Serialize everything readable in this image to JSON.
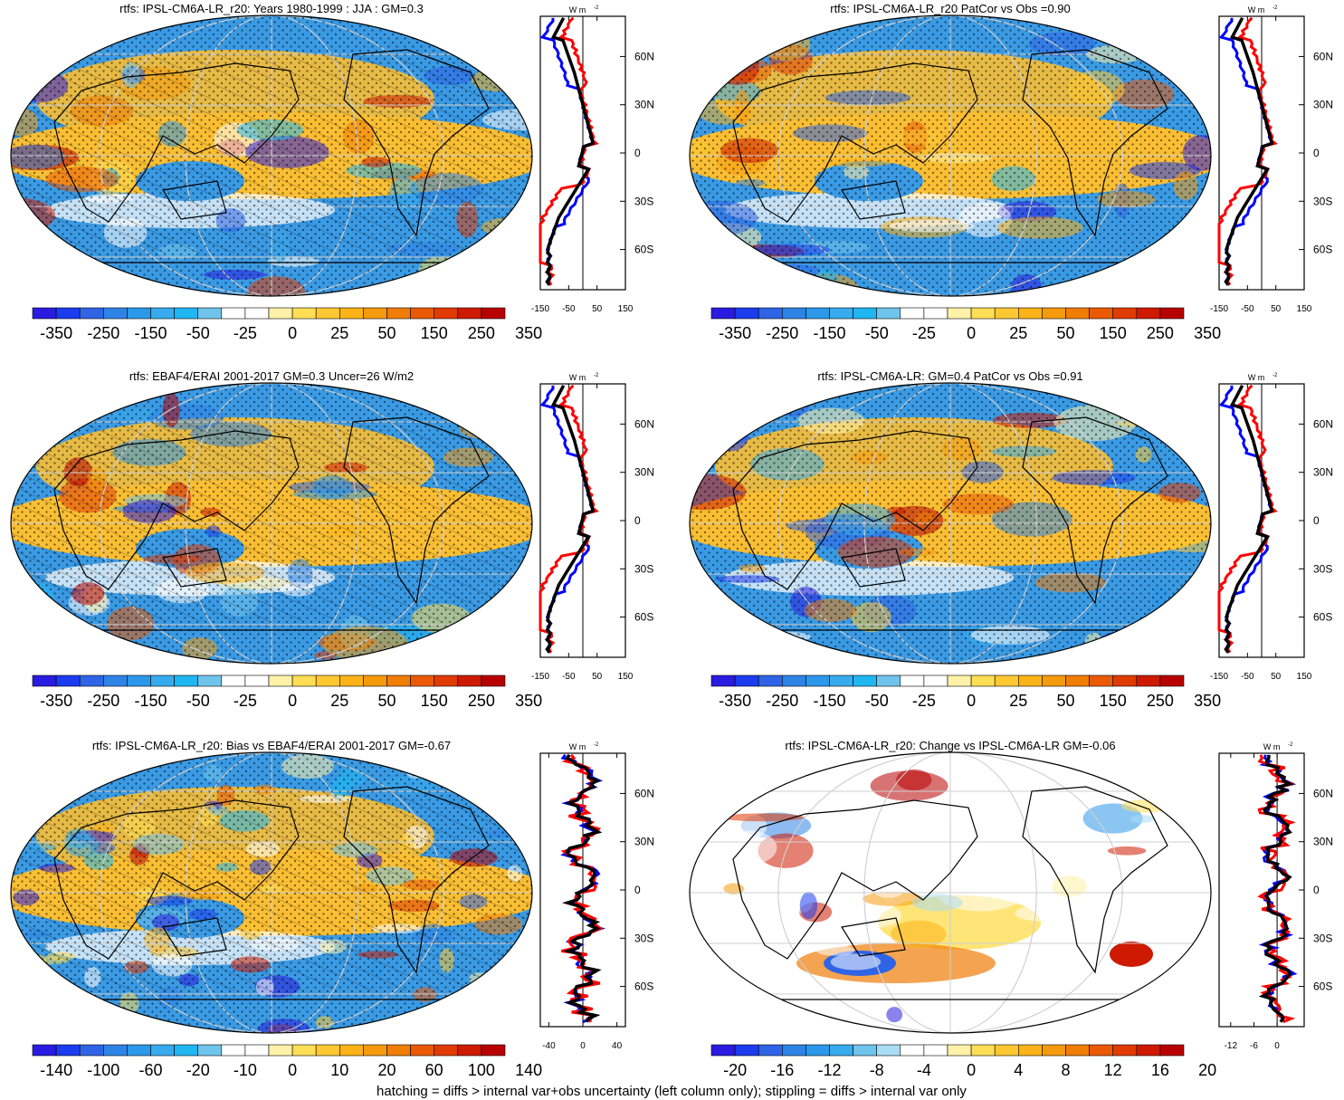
{
  "footnote": "hatching = diffs > internal var+obs uncertainty (left column only); stippling = diffs > internal var only",
  "units_label": "W m",
  "units_exp": "-2",
  "lat_ticks": [
    "60N",
    "30N",
    "0",
    "30S",
    "60S"
  ],
  "colors": {
    "full": [
      "#2a1be0",
      "#1c3cf0",
      "#2f64e6",
      "#2e84e6",
      "#2b98ea",
      "#37abed",
      "#1fb6f2",
      "#6fc4ec",
      "#ffffff",
      "#ffffff",
      "#fff2a8",
      "#ffde55",
      "#ffc832",
      "#fbb317",
      "#f59a0c",
      "#f07d06",
      "#ea5a04",
      "#e03b02",
      "#cd1a00",
      "#b80000"
    ],
    "change": [
      "#2a1be0",
      "#1c3cf0",
      "#2f64e6",
      "#2e84e6",
      "#2b98ea",
      "#37abed",
      "#6fc4ec",
      "#a8dcf2",
      "#ffffff",
      "#ffffff",
      "#fff2a8",
      "#ffde55",
      "#ffc832",
      "#fbb317",
      "#f59a0c",
      "#f07d06",
      "#ea5a04",
      "#e03b02",
      "#cd1a00",
      "#b80000"
    ],
    "ocean_cold": "#3a9ae4",
    "ocean_warm": "#f9be33",
    "line_obs": "#000000",
    "line_model": "#ff0000",
    "line_other": "#0000ff"
  },
  "chart_data": [
    {
      "type": "heatmap",
      "title": "rtfs: IPSL-CM6A-LR_r20: Years 1980-1999 : JJA : GM=0.3",
      "colorbar_labels": [
        "-350",
        "-250",
        "-150",
        "-50",
        "-25",
        "0",
        "25",
        "50",
        "150",
        "250",
        "350"
      ],
      "profile_xticks": [
        "-150",
        "-50",
        "50",
        "150"
      ],
      "profile_xlim": [
        -150,
        150
      ]
    },
    {
      "type": "heatmap",
      "title": "rtfs: IPSL-CM6A-LR_r20 PatCor vs Obs =0.90",
      "colorbar_labels": [
        "-350",
        "-250",
        "-150",
        "-50",
        "-25",
        "0",
        "25",
        "50",
        "150",
        "250",
        "350"
      ],
      "profile_xticks": [
        "-150",
        "-50",
        "50",
        "150"
      ],
      "profile_xlim": [
        -150,
        150
      ]
    },
    {
      "type": "heatmap",
      "title": "rtfs: EBAF4/ERAI 2001-2017 GM=0.3 Uncer=26 W/m2",
      "colorbar_labels": [
        "-350",
        "-250",
        "-150",
        "-50",
        "-25",
        "0",
        "25",
        "50",
        "150",
        "250",
        "350"
      ],
      "profile_xticks": [
        "-150",
        "-50",
        "50",
        "150"
      ],
      "profile_xlim": [
        -150,
        150
      ]
    },
    {
      "type": "heatmap",
      "title": "rtfs: IPSL-CM6A-LR: GM=0.4 PatCor vs Obs =0.91",
      "colorbar_labels": [
        "-350",
        "-250",
        "-150",
        "-50",
        "-25",
        "0",
        "25",
        "50",
        "150",
        "250",
        "350"
      ],
      "profile_xticks": [
        "-150",
        "-50",
        "50",
        "150"
      ],
      "profile_xlim": [
        -150,
        150
      ]
    },
    {
      "type": "heatmap",
      "title": "rtfs: IPSL-CM6A-LR_r20: Bias vs EBAF4/ERAI 2001-2017 GM=-0.67",
      "colorbar_labels": [
        "-140",
        "-100",
        "-60",
        "-20",
        "-10",
        "0",
        "10",
        "20",
        "60",
        "100",
        "140"
      ],
      "profile_xticks": [
        "-40",
        "0",
        "40"
      ],
      "profile_xlim": [
        -50,
        50
      ]
    },
    {
      "type": "heatmap",
      "title": "rtfs: IPSL-CM6A-LR_r20: Change vs IPSL-CM6A-LR GM=-0.06",
      "colorbar_labels": [
        "-20",
        "-16",
        "-12",
        "-8",
        "-4",
        "0",
        "4",
        "8",
        "12",
        "16",
        "20"
      ],
      "profile_xticks": [
        "-12",
        "-6",
        "0"
      ],
      "profile_xlim": [
        -15,
        7
      ]
    }
  ]
}
